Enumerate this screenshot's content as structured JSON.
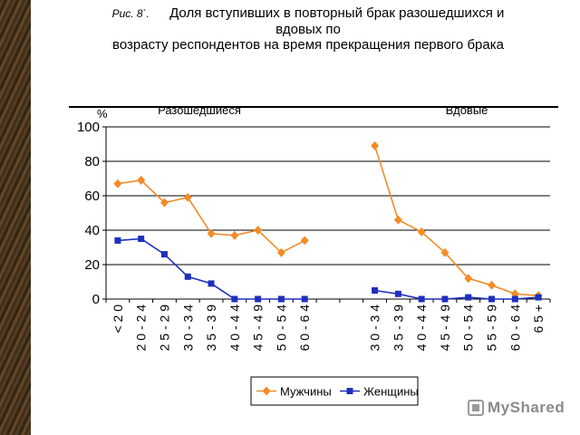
{
  "caption": {
    "fig_label": "Рис. 8`.",
    "line1": "Доля вступивших в повторный брак разошедшихся и",
    "line2": "вдовых по",
    "line3": "возрасту респондентов на время прекращения первого брака"
  },
  "watermark": {
    "text": "MyShared"
  },
  "chart_data": {
    "type": "line",
    "groups": [
      "Разошедшиеся",
      "Вдовые"
    ],
    "ylabel": "%",
    "ylim": [
      0,
      100
    ],
    "yticks": [
      0,
      20,
      40,
      60,
      80,
      100
    ],
    "grid": true,
    "legend_position": "bottom",
    "categories": [
      "< 2 0",
      "2 0 - 2 4",
      "2 5 - 2 9",
      "3 0 - 3 4",
      "3 5 - 3 9",
      "4 0 - 4 4",
      "4 5 - 4 9",
      "5 0 - 5 4",
      "6 0 - 6 4",
      "",
      "",
      "3 0 - 3 4",
      "3 5 - 3 9",
      "4 0 - 4 4",
      "4 5 - 4 9",
      "5 0 - 5 4",
      "5 5 - 5 9",
      "6 0 - 6 4",
      "6 5 +"
    ],
    "series": [
      {
        "name": "Мужчины",
        "color": "#F28C28",
        "marker": "diamond",
        "values": [
          67,
          69,
          56,
          59,
          38,
          37,
          40,
          27,
          34,
          null,
          null,
          89,
          46,
          39,
          27,
          12,
          8,
          3,
          2
        ]
      },
      {
        "name": "Женщины",
        "color": "#1F2FBF",
        "marker": "square",
        "values": [
          34,
          35,
          26,
          13,
          9,
          0,
          0,
          0,
          0,
          null,
          null,
          5,
          3,
          0,
          0,
          1,
          0,
          0,
          1
        ]
      }
    ]
  }
}
